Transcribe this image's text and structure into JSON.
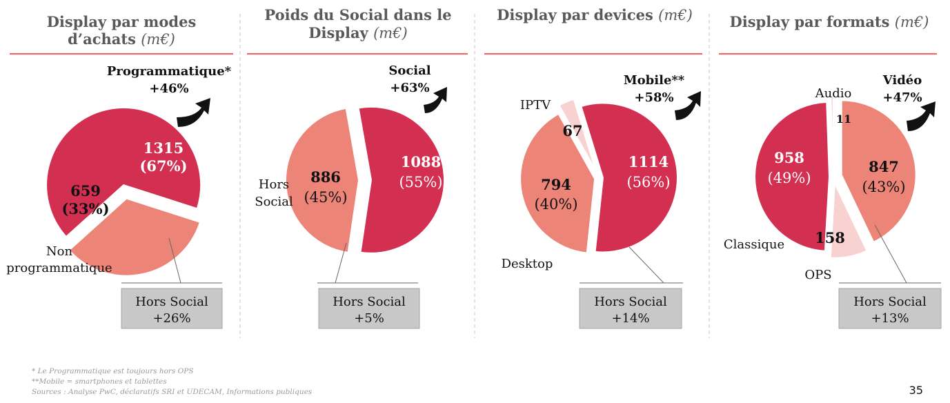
{
  "colors": {
    "dark_red": "#d33051",
    "salmon": "#ec8478",
    "light_pink": "#f7d2d0",
    "title_rule": "#e86a6a",
    "box_fill": "#c8c8c8",
    "title_text": "#595959"
  },
  "panels": [
    {
      "title_lines": [
        "Display par modes",
        "d’achats"
      ],
      "unit": "(m€)",
      "highlight": {
        "label": "Programmatique*",
        "growth": "+46%"
      },
      "box": {
        "label": "Hors Social",
        "growth": "+26%"
      },
      "external_labels": [
        "Non",
        "programmatique"
      ],
      "slices": [
        {
          "name": "Programmatique",
          "value": 1315,
          "pct": "(67%)"
        },
        {
          "name": "Non programmatique",
          "value": 659,
          "pct": "(33%)"
        }
      ]
    },
    {
      "title_lines": [
        "Poids du Social dans le",
        "Display"
      ],
      "unit": "(m€)",
      "highlight": {
        "label": "Social",
        "growth": "+63%"
      },
      "box": {
        "label": "Hors Social",
        "growth": "+5%"
      },
      "external_labels": [
        "Hors",
        "Social"
      ],
      "slices": [
        {
          "name": "Social",
          "value": 1088,
          "pct": "(55%)"
        },
        {
          "name": "Hors Social",
          "value": 886,
          "pct": "(45%)"
        }
      ]
    },
    {
      "title_lines": [
        "Display par devices"
      ],
      "unit": "(m€)",
      "highlight": {
        "label": "Mobile**",
        "growth": "+58%"
      },
      "box": {
        "label": "Hors Social",
        "growth": "+14%"
      },
      "external_labels": [
        "IPTV",
        "Desktop"
      ],
      "slices": [
        {
          "name": "Mobile",
          "value": 1114,
          "pct": "(56%)"
        },
        {
          "name": "Desktop",
          "value": 794,
          "pct": "(40%)"
        },
        {
          "name": "IPTV",
          "value": 67,
          "pct": ""
        }
      ]
    },
    {
      "title_lines": [
        "Display par formats"
      ],
      "unit": "(m€)",
      "highlight": {
        "label": "Vidéo",
        "growth": "+47%"
      },
      "box": {
        "label": "Hors Social",
        "growth": "+13%"
      },
      "external_labels": [
        "Audio",
        "Classique",
        "OPS"
      ],
      "slices": [
        {
          "name": "Audio",
          "value": 11,
          "pct": ""
        },
        {
          "name": "Vidéo",
          "value": 847,
          "pct": "(43%)"
        },
        {
          "name": "OPS",
          "value": 158,
          "pct": ""
        },
        {
          "name": "Classique",
          "value": 958,
          "pct": "(49%)"
        }
      ]
    }
  ],
  "chart_data": [
    {
      "type": "pie",
      "title": "Display par modes d’achats (m€)",
      "categories": [
        "Programmatique",
        "Non programmatique"
      ],
      "values": [
        1315,
        659
      ],
      "annotations": [
        "Programmatique* +46%",
        "Hors Social +26%"
      ]
    },
    {
      "type": "pie",
      "title": "Poids du Social dans le Display (m€)",
      "categories": [
        "Social",
        "Hors Social"
      ],
      "values": [
        1088,
        886
      ],
      "annotations": [
        "Social +63%",
        "Hors Social +5%"
      ]
    },
    {
      "type": "pie",
      "title": "Display par devices (m€)",
      "categories": [
        "Mobile",
        "Desktop",
        "IPTV"
      ],
      "values": [
        1114,
        794,
        67
      ],
      "annotations": [
        "Mobile** +58%",
        "Hors Social +14%"
      ]
    },
    {
      "type": "pie",
      "title": "Display par formats (m€)",
      "categories": [
        "Audio",
        "Vidéo",
        "OPS",
        "Classique"
      ],
      "values": [
        11,
        847,
        158,
        958
      ],
      "annotations": [
        "Vidéo +47%",
        "Hors Social +13%"
      ]
    }
  ],
  "footnotes": [
    "* Le Programmatique est toujours hors OPS",
    "**Mobile = smartphones et tablettes",
    "Sources : Analyse PwC, déclaratifs SRI et UDECAM, Informations publiques"
  ],
  "page_number": "35"
}
